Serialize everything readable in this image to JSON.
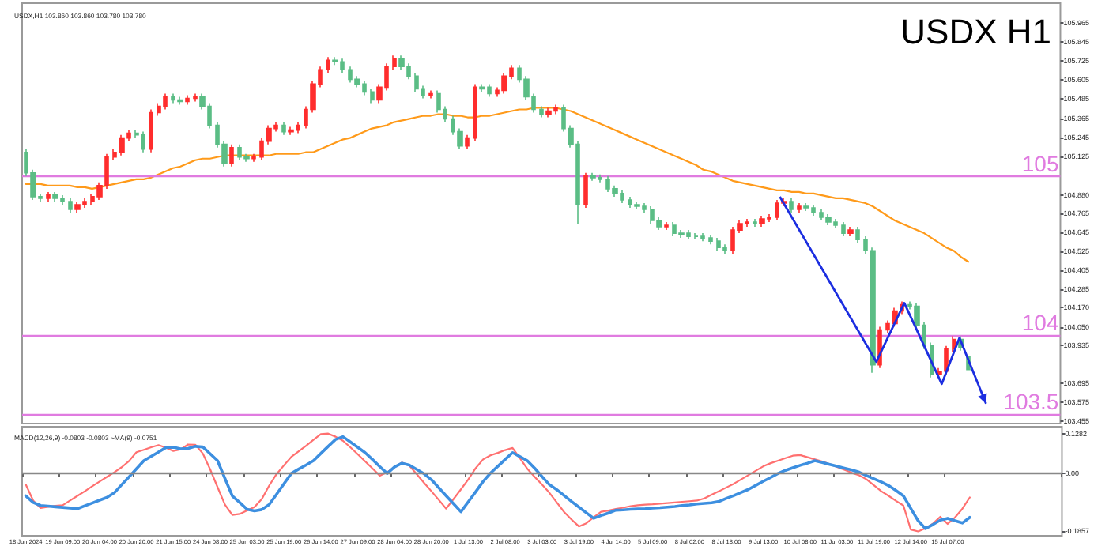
{
  "chart_data": [
    {
      "type": "candlestick",
      "title": "USDX H1",
      "subtitle": "USDX,H1 103.860 103.860 103.780 103.780",
      "tick_labels": "y",
      "categories": [
        null,
        null,
        null,
        null,
        null,
        null,
        null,
        null,
        null,
        null,
        null,
        null,
        null,
        null,
        null,
        null,
        null,
        null,
        null,
        null,
        null,
        null,
        null,
        null,
        null,
        null,
        null,
        null,
        null,
        null,
        null,
        null,
        null,
        null,
        null,
        null,
        null,
        null,
        null,
        null,
        null,
        null,
        null,
        null,
        null,
        null,
        null,
        null,
        null,
        null,
        null,
        null,
        null,
        null,
        null,
        null,
        null,
        null,
        null,
        null,
        null,
        null,
        null,
        null,
        null,
        null,
        null,
        null,
        null,
        null,
        null,
        null,
        null,
        null,
        null,
        null,
        null,
        null,
        null,
        null,
        null,
        null,
        null,
        null,
        null,
        null,
        null,
        null,
        null,
        null,
        null,
        null,
        null,
        null,
        null,
        null,
        null,
        null,
        null,
        null,
        null,
        null,
        null,
        null,
        null,
        null,
        null,
        null,
        null,
        null,
        null,
        null,
        null,
        null,
        null,
        null,
        null,
        null,
        null,
        null,
        null,
        null,
        null,
        null,
        null,
        null,
        null,
        null,
        null,
        null,
        null,
        null,
        null,
        null,
        null,
        null,
        null,
        null,
        null,
        null,
        null
      ],
      "ohlc": [
        [
          105.15,
          105.17,
          105.0,
          105.02
        ],
        [
          105.02,
          105.04,
          104.85,
          104.87
        ],
        [
          104.87,
          104.89,
          104.84,
          104.86
        ],
        [
          104.86,
          104.9,
          104.84,
          104.88
        ],
        [
          104.88,
          104.9,
          104.84,
          104.86
        ],
        [
          104.86,
          104.88,
          104.82,
          104.84
        ],
        [
          104.84,
          104.86,
          104.77,
          104.79
        ],
        [
          104.79,
          104.84,
          104.77,
          104.82
        ],
        [
          104.82,
          104.86,
          104.8,
          104.84
        ],
        [
          104.84,
          104.89,
          104.82,
          104.87
        ],
        [
          104.87,
          104.96,
          104.85,
          104.94
        ],
        [
          104.94,
          105.14,
          104.92,
          105.12
        ],
        [
          105.12,
          105.17,
          105.1,
          105.15
        ],
        [
          105.15,
          105.26,
          105.13,
          105.24
        ],
        [
          105.24,
          105.29,
          105.22,
          105.27
        ],
        [
          105.27,
          105.29,
          105.24,
          105.26
        ],
        [
          105.26,
          105.28,
          105.15,
          105.17
        ],
        [
          105.17,
          105.42,
          105.15,
          105.4
        ],
        [
          105.4,
          105.46,
          105.38,
          105.44
        ],
        [
          105.44,
          105.52,
          105.42,
          105.5
        ],
        [
          105.5,
          105.52,
          105.46,
          105.48
        ],
        [
          105.48,
          105.5,
          105.45,
          105.47
        ],
        [
          105.47,
          105.51,
          105.45,
          105.49
        ],
        [
          105.49,
          105.52,
          105.47,
          105.5
        ],
        [
          105.5,
          105.52,
          105.42,
          105.44
        ],
        [
          105.44,
          105.46,
          105.3,
          105.32
        ],
        [
          105.32,
          105.34,
          105.18,
          105.2
        ],
        [
          105.2,
          105.22,
          105.06,
          105.08
        ],
        [
          105.08,
          105.2,
          105.06,
          105.18
        ],
        [
          105.18,
          105.2,
          105.1,
          105.12
        ],
        [
          105.12,
          105.14,
          105.09,
          105.11
        ],
        [
          105.11,
          105.14,
          105.09,
          105.12
        ],
        [
          105.12,
          105.24,
          105.1,
          105.22
        ],
        [
          105.22,
          105.32,
          105.2,
          105.3
        ],
        [
          105.3,
          105.34,
          105.28,
          105.32
        ],
        [
          105.32,
          105.34,
          105.26,
          105.28
        ],
        [
          105.28,
          105.31,
          105.26,
          105.29
        ],
        [
          105.29,
          105.34,
          105.27,
          105.32
        ],
        [
          105.32,
          105.44,
          105.3,
          105.42
        ],
        [
          105.42,
          105.6,
          105.4,
          105.58
        ],
        [
          105.58,
          105.69,
          105.56,
          105.67
        ],
        [
          105.67,
          105.75,
          105.65,
          105.73
        ],
        [
          105.73,
          105.75,
          105.7,
          105.72
        ],
        [
          105.72,
          105.74,
          105.65,
          105.67
        ],
        [
          105.67,
          105.69,
          105.59,
          105.61
        ],
        [
          105.61,
          105.63,
          105.56,
          105.58
        ],
        [
          105.58,
          105.6,
          105.51,
          105.53
        ],
        [
          105.53,
          105.55,
          105.46,
          105.48
        ],
        [
          105.48,
          105.58,
          105.46,
          105.56
        ],
        [
          105.56,
          105.71,
          105.54,
          105.69
        ],
        [
          105.69,
          105.76,
          105.67,
          105.74
        ],
        [
          105.74,
          105.76,
          105.67,
          105.69
        ],
        [
          105.69,
          105.71,
          105.61,
          105.63
        ],
        [
          105.63,
          105.65,
          105.53,
          105.55
        ],
        [
          105.55,
          105.57,
          105.49,
          105.51
        ],
        [
          105.51,
          105.54,
          105.49,
          105.52
        ],
        [
          105.52,
          105.54,
          105.4,
          105.42
        ],
        [
          105.42,
          105.44,
          105.34,
          105.36
        ],
        [
          105.36,
          105.38,
          105.26,
          105.28
        ],
        [
          105.28,
          105.3,
          105.17,
          105.19
        ],
        [
          105.19,
          105.26,
          105.17,
          105.24
        ],
        [
          105.24,
          105.58,
          105.22,
          105.56
        ],
        [
          105.56,
          105.58,
          105.53,
          105.55
        ],
        [
          105.56,
          105.58,
          105.5,
          105.52
        ],
        [
          105.52,
          105.56,
          105.5,
          105.54
        ],
        [
          105.54,
          105.65,
          105.52,
          105.63
        ],
        [
          105.63,
          105.7,
          105.61,
          105.68
        ],
        [
          105.68,
          105.7,
          105.59,
          105.61
        ],
        [
          105.61,
          105.63,
          105.48,
          105.5
        ],
        [
          105.5,
          105.52,
          105.4,
          105.42
        ],
        [
          105.42,
          105.44,
          105.37,
          105.39
        ],
        [
          105.39,
          105.43,
          105.37,
          105.41
        ],
        [
          105.41,
          105.45,
          105.39,
          105.43
        ],
        [
          105.43,
          105.45,
          105.28,
          105.3
        ],
        [
          105.3,
          105.32,
          105.18,
          105.2
        ],
        [
          105.2,
          105.22,
          104.7,
          104.82
        ],
        [
          104.82,
          105.02,
          104.8,
          105.0
        ],
        [
          105.0,
          105.02,
          104.97,
          104.99
        ],
        [
          104.99,
          105.01,
          104.96,
          104.98
        ],
        [
          104.98,
          105.0,
          104.9,
          104.92
        ],
        [
          104.92,
          104.94,
          104.87,
          104.89
        ],
        [
          104.89,
          104.91,
          104.83,
          104.85
        ],
        [
          104.85,
          104.87,
          104.8,
          104.82
        ],
        [
          104.82,
          104.84,
          104.79,
          104.81
        ],
        [
          104.81,
          104.83,
          104.77,
          104.79
        ],
        [
          104.79,
          104.81,
          104.7,
          104.72
        ],
        [
          104.72,
          104.74,
          104.66,
          104.68
        ],
        [
          104.68,
          104.71,
          104.66,
          104.69
        ],
        [
          104.69,
          104.71,
          104.62,
          104.64
        ],
        [
          104.64,
          104.66,
          104.61,
          104.63
        ],
        [
          104.64,
          104.66,
          104.6,
          104.62
        ],
        [
          104.62,
          104.64,
          104.6,
          104.62
        ],
        [
          104.62,
          104.64,
          104.59,
          104.61
        ],
        [
          104.61,
          104.63,
          104.57,
          104.59
        ],
        [
          104.59,
          104.61,
          104.53,
          104.55
        ],
        [
          104.55,
          104.57,
          104.51,
          104.53
        ],
        [
          104.53,
          104.68,
          104.51,
          104.66
        ],
        [
          104.66,
          104.72,
          104.64,
          104.7
        ],
        [
          104.7,
          104.73,
          104.68,
          104.71
        ],
        [
          104.71,
          104.73,
          104.68,
          104.7
        ],
        [
          104.7,
          104.75,
          104.68,
          104.73
        ],
        [
          104.73,
          104.76,
          104.71,
          104.74
        ],
        [
          104.74,
          104.85,
          104.72,
          104.83
        ],
        [
          104.83,
          104.86,
          104.81,
          104.84
        ],
        [
          104.84,
          104.86,
          104.77,
          104.79
        ],
        [
          104.79,
          104.83,
          104.77,
          104.81
        ],
        [
          104.81,
          104.83,
          104.78,
          104.8
        ],
        [
          104.8,
          104.82,
          104.75,
          104.77
        ],
        [
          104.77,
          104.79,
          104.72,
          104.74
        ],
        [
          104.74,
          104.76,
          104.69,
          104.71
        ],
        [
          104.71,
          104.73,
          104.67,
          104.69
        ],
        [
          104.69,
          104.71,
          104.62,
          104.64
        ],
        [
          104.64,
          104.68,
          104.62,
          104.66
        ],
        [
          104.66,
          104.68,
          104.58,
          104.6
        ],
        [
          104.6,
          104.62,
          104.51,
          104.53
        ],
        [
          104.53,
          104.55,
          103.76,
          103.81
        ],
        [
          103.81,
          104.05,
          103.79,
          104.03
        ],
        [
          104.03,
          104.09,
          104.01,
          104.07
        ],
        [
          104.07,
          104.17,
          104.05,
          104.15
        ],
        [
          104.15,
          104.21,
          104.13,
          104.19
        ],
        [
          104.19,
          104.21,
          104.16,
          104.18
        ],
        [
          104.18,
          104.2,
          104.04,
          104.06
        ],
        [
          104.06,
          104.08,
          103.91,
          103.93
        ],
        [
          103.93,
          103.95,
          103.73,
          103.75
        ],
        [
          103.75,
          103.79,
          103.73,
          103.77
        ],
        [
          103.77,
          103.93,
          103.75,
          103.91
        ],
        [
          103.91,
          103.99,
          103.89,
          103.97
        ],
        [
          103.97,
          103.99,
          103.9,
          103.92
        ],
        [
          103.86,
          103.86,
          103.78,
          103.78
        ],
        null,
        null,
        null,
        null,
        null,
        null,
        null,
        null,
        null,
        null,
        null,
        null
      ],
      "colors": [
        "#5bbd85",
        "#5bbd85",
        "#5bbd85",
        "#ff2d2d",
        "#5bbd85",
        "#5bbd85",
        "#5bbd85",
        "#ff2d2d",
        "#ff2d2d",
        "#ff2d2d",
        "#ff2d2d",
        "#ff2d2d",
        "#ff2d2d",
        "#ff2d2d",
        "#ff2d2d",
        "#5bbd85",
        "#5bbd85",
        "#ff2d2d",
        "#ff2d2d",
        "#ff2d2d",
        "#5bbd85",
        "#5bbd85",
        "#ff2d2d",
        "#ff2d2d",
        "#5bbd85",
        "#5bbd85",
        "#5bbd85",
        "#5bbd85",
        "#ff2d2d",
        "#5bbd85",
        "#5bbd85",
        "#ff2d2d",
        "#ff2d2d",
        "#ff2d2d",
        "#ff2d2d",
        "#5bbd85",
        "#ff2d2d",
        "#ff2d2d",
        "#ff2d2d",
        "#ff2d2d",
        "#ff2d2d",
        "#ff2d2d",
        "#5bbd85",
        "#5bbd85",
        "#5bbd85",
        "#5bbd85",
        "#5bbd85",
        "#5bbd85",
        "#ff2d2d",
        "#ff2d2d",
        "#ff2d2d",
        "#5bbd85",
        "#5bbd85",
        "#5bbd85",
        "#5bbd85",
        "#ff2d2d",
        "#5bbd85",
        "#5bbd85",
        "#5bbd85",
        "#5bbd85",
        "#ff2d2d",
        "#ff2d2d",
        "#5bbd85",
        "#5bbd85",
        "#ff2d2d",
        "#ff2d2d",
        "#ff2d2d",
        "#5bbd85",
        "#5bbd85",
        "#5bbd85",
        "#5bbd85",
        "#ff2d2d",
        "#ff2d2d",
        "#5bbd85",
        "#5bbd85",
        "#5bbd85",
        "#ff2d2d",
        "#5bbd85",
        "#5bbd85",
        "#5bbd85",
        "#5bbd85",
        "#5bbd85",
        "#5bbd85",
        "#5bbd85",
        "#5bbd85",
        "#5bbd85",
        "#5bbd85",
        "#ff2d2d",
        "#5bbd85",
        "#5bbd85",
        "#5bbd85",
        "#5bbd85",
        "#5bbd85",
        "#5bbd85",
        "#5bbd85",
        "#5bbd85",
        "#ff2d2d",
        "#ff2d2d",
        "#ff2d2d",
        "#5bbd85",
        "#ff2d2d",
        "#ff2d2d",
        "#ff2d2d",
        "#ff2d2d",
        "#5bbd85",
        "#ff2d2d",
        "#5bbd85",
        "#5bbd85",
        "#5bbd85",
        "#5bbd85",
        "#5bbd85",
        "#5bbd85",
        "#ff2d2d",
        "#5bbd85",
        "#5bbd85",
        "#5bbd85",
        "#ff2d2d",
        "#ff2d2d",
        "#ff2d2d",
        "#ff2d2d",
        "#5bbd85",
        "#5bbd85",
        "#5bbd85",
        "#5bbd85",
        "#ff2d2d",
        "#ff2d2d",
        "#ff2d2d",
        "#5bbd85",
        "#5bbd85",
        null,
        null,
        null,
        null,
        null,
        null,
        null,
        null,
        null,
        null,
        null,
        null
      ],
      "series": [
        {
          "type": "line",
          "color": "#ff9a1a",
          "values": [
            104.95,
            104.95,
            104.95,
            104.94,
            104.94,
            104.94,
            104.94,
            104.93,
            104.93,
            104.92,
            104.93,
            104.94,
            104.95,
            104.96,
            104.97,
            104.98,
            104.98,
            104.99,
            105.01,
            105.03,
            105.05,
            105.06,
            105.08,
            105.1,
            105.11,
            105.11,
            105.12,
            105.13,
            105.13,
            105.13,
            105.13,
            105.13,
            105.13,
            105.13,
            105.14,
            105.14,
            105.14,
            105.14,
            105.15,
            105.15,
            105.17,
            105.19,
            105.21,
            105.23,
            105.24,
            105.26,
            105.28,
            105.3,
            105.31,
            105.32,
            105.34,
            105.35,
            105.36,
            105.37,
            105.38,
            105.38,
            105.39,
            105.39,
            105.38,
            105.38,
            105.37,
            105.37,
            105.38,
            105.38,
            105.39,
            105.4,
            105.41,
            105.42,
            105.42,
            105.43,
            105.43,
            105.43,
            105.43,
            105.42,
            105.41,
            105.39,
            105.37,
            105.35,
            105.33,
            105.31,
            105.29,
            105.27,
            105.25,
            105.23,
            105.21,
            105.19,
            105.17,
            105.15,
            105.13,
            105.11,
            105.09,
            105.07,
            105.04,
            105.03,
            105.01,
            104.99,
            104.97,
            104.96,
            104.95,
            104.94,
            104.93,
            104.92,
            104.91,
            104.91,
            104.9,
            104.9,
            104.89,
            104.89,
            104.88,
            104.87,
            104.86,
            104.86,
            104.85,
            104.84,
            104.83,
            104.81,
            104.78,
            104.75,
            104.72,
            104.7,
            104.68,
            104.66,
            104.64,
            104.61,
            104.58,
            104.55,
            104.53,
            104.49,
            104.46,
            null,
            null,
            null,
            null,
            null,
            null,
            null,
            null,
            null,
            null,
            null,
            null
          ]
        }
      ],
      "ylim": [
        103.44,
        106.09
      ],
      "yticks": [
        103.455,
        103.575,
        103.695,
        103.935,
        {
          "value": 104.05,
          "label": "104.050"
        },
        {
          "value": 104.17,
          "label": "104.170"
        },
        104.285,
        104.405,
        104.525,
        104.645,
        104.765,
        {
          "value": 104.88,
          "label": "104.880"
        },
        105.125,
        105.245,
        105.365,
        105.485,
        105.605,
        105.725,
        105.845,
        105.965
      ],
      "ref_lines": [
        {
          "axis": "y",
          "value": 105,
          "label": "105",
          "color": "#e07be0"
        },
        {
          "axis": "y",
          "value": 104,
          "label": "104",
          "color": "#e07be0"
        },
        {
          "axis": "y",
          "value": 103.5,
          "label": "103.5",
          "color": "#e07be0"
        }
      ]
    },
    {
      "type": "line",
      "title": "MACD(12,26,9) -0.0803 -0.0803 ~MA(9) -0.0751",
      "categories": [
        "18 Jun 2024",
        null,
        null,
        null,
        null,
        "19 Jun 09:00",
        null,
        null,
        null,
        null,
        "20 Jun 04:00",
        null,
        null,
        null,
        null,
        "20 Jun 20:00",
        null,
        null,
        null,
        null,
        "21 Jun 15:00",
        null,
        null,
        null,
        null,
        "24 Jun 08:00",
        null,
        null,
        null,
        null,
        "25 Jun 03:00",
        null,
        null,
        null,
        null,
        "25 Jun 19:00",
        null,
        null,
        null,
        null,
        "26 Jun 14:00",
        null,
        null,
        null,
        null,
        "27 Jun 09:00",
        null,
        null,
        null,
        null,
        "28 Jun 04:00",
        null,
        null,
        null,
        null,
        "28 Jun 20:00",
        null,
        null,
        null,
        null,
        "1 Jul 13:00",
        null,
        null,
        null,
        null,
        "2 Jul 08:00",
        null,
        null,
        null,
        null,
        "3 Jul 03:00",
        null,
        null,
        null,
        null,
        "3 Jul 19:00",
        null,
        null,
        null,
        null,
        "4 Jul 14:00",
        null,
        null,
        null,
        null,
        "5 Jul 09:00",
        null,
        null,
        null,
        null,
        "8 Jul 02:00",
        null,
        null,
        null,
        null,
        "8 Jul 18:00",
        null,
        null,
        null,
        null,
        "9 Jul 13:00",
        null,
        null,
        null,
        null,
        "10 Jul 08:00",
        null,
        null,
        null,
        null,
        "11 Jul 03:00",
        null,
        null,
        null,
        null,
        "11 Jul 19:00",
        null,
        null,
        null,
        null,
        "12 Jul 14:00",
        null,
        null,
        null,
        null,
        "15 Jul 07:00",
        null,
        null,
        null,
        null,
        null,
        null,
        null,
        null,
        null,
        null,
        null,
        null,
        null,
        null,
        null
      ],
      "series": [
        {
          "color": "#ff7070",
          "values": [
            -0.036,
            -0.087,
            -0.111,
            -0.107,
            -0.104,
            -0.102,
            -0.087,
            -0.072,
            -0.057,
            -0.041,
            -0.026,
            -0.011,
            0.004,
            0.02,
            0.04,
            0.068,
            0.076,
            0.084,
            0.091,
            0.083,
            0.072,
            0.077,
            0.093,
            0.092,
            0.064,
            0.013,
            -0.044,
            -0.1,
            -0.133,
            -0.13,
            -0.119,
            -0.108,
            -0.082,
            -0.039,
            -0.002,
            0.026,
            0.053,
            0.071,
            0.089,
            0.108,
            0.126,
            0.128,
            0.118,
            0.105,
            0.084,
            0.062,
            0.039,
            0.016,
            -0.007,
            0.004,
            0.02,
            0.035,
            0.025,
            -0.002,
            -0.03,
            -0.057,
            -0.085,
            -0.113,
            -0.082,
            -0.051,
            -0.019,
            0.017,
            0.045,
            0.058,
            0.066,
            0.075,
            0.082,
            0.049,
            0.015,
            -0.011,
            -0.036,
            -0.062,
            -0.093,
            -0.124,
            -0.148,
            -0.17,
            -0.16,
            -0.141,
            -0.123,
            -0.119,
            -0.114,
            -0.11,
            -0.105,
            -0.102,
            -0.1,
            -0.099,
            -0.097,
            -0.095,
            -0.093,
            -0.091,
            -0.089,
            -0.087,
            -0.08,
            -0.068,
            -0.057,
            -0.045,
            -0.033,
            -0.019,
            -0.005,
            0.009,
            0.023,
            0.033,
            0.041,
            0.049,
            0.057,
            0.059,
            0.052,
            0.045,
            0.038,
            0.03,
            0.021,
            0.012,
            0.002,
            -0.006,
            -0.019,
            -0.038,
            -0.057,
            -0.072,
            -0.088,
            -0.103,
            -0.18,
            -0.186,
            -0.176,
            -0.161,
            -0.139,
            -0.162,
            -0.141,
            -0.113,
            -0.077,
            null,
            null,
            null,
            null,
            null,
            null,
            null,
            null,
            null,
            null,
            null,
            null
          ]
        },
        {
          "color": "#3d8fe0",
          "values": [
            -0.072,
            -0.093,
            -0.103,
            -0.105,
            -0.107,
            -0.109,
            -0.111,
            -0.113,
            -0.104,
            -0.095,
            -0.086,
            -0.077,
            -0.062,
            -0.036,
            -0.011,
            0.015,
            0.041,
            0.055,
            0.069,
            0.083,
            0.084,
            0.079,
            0.08,
            0.087,
            0.085,
            0.063,
            0.041,
            -0.016,
            -0.072,
            -0.093,
            -0.115,
            -0.12,
            -0.116,
            -0.1,
            -0.067,
            -0.033,
            0,
            0.014,
            0.027,
            0.041,
            0.064,
            0.087,
            0.109,
            0.118,
            0.101,
            0.084,
            0.067,
            0.045,
            0.022,
            0,
            0.021,
            0.033,
            0.027,
            0.013,
            -0.001,
            -0.02,
            -0.046,
            -0.072,
            -0.097,
            -0.123,
            -0.091,
            -0.059,
            -0.026,
            0.001,
            0.023,
            0.045,
            0.067,
            0.054,
            0.041,
            0.017,
            -0.01,
            -0.036,
            -0.052,
            -0.071,
            -0.09,
            -0.108,
            -0.126,
            -0.144,
            -0.135,
            -0.127,
            -0.118,
            -0.117,
            -0.115,
            -0.114,
            -0.113,
            -0.111,
            -0.11,
            -0.108,
            -0.106,
            -0.103,
            -0.101,
            -0.098,
            -0.096,
            -0.094,
            -0.09,
            -0.08,
            -0.071,
            -0.061,
            -0.051,
            -0.038,
            -0.025,
            -0.013,
            0.0,
            0.01,
            0.018,
            0.026,
            0.033,
            0.041,
            0.035,
            0.029,
            0.023,
            0.017,
            0.011,
            0.004,
            -0.007,
            -0.017,
            -0.027,
            -0.039,
            -0.055,
            -0.072,
            -0.112,
            -0.152,
            -0.177,
            -0.164,
            -0.15,
            -0.144,
            -0.152,
            -0.159,
            -0.141,
            null,
            null,
            null,
            null,
            null,
            null,
            null,
            null,
            null,
            null,
            null,
            null
          ]
        }
      ],
      "ylim": [
        -0.2,
        0.15
      ],
      "yticks": [
        -0.1857,
        {
          "value": 0,
          "label": "0.00"
        },
        0.1282
      ],
      "ref_lines": [
        {
          "axis": "y",
          "value": 0,
          "color": "#888888"
        }
      ]
    }
  ]
}
